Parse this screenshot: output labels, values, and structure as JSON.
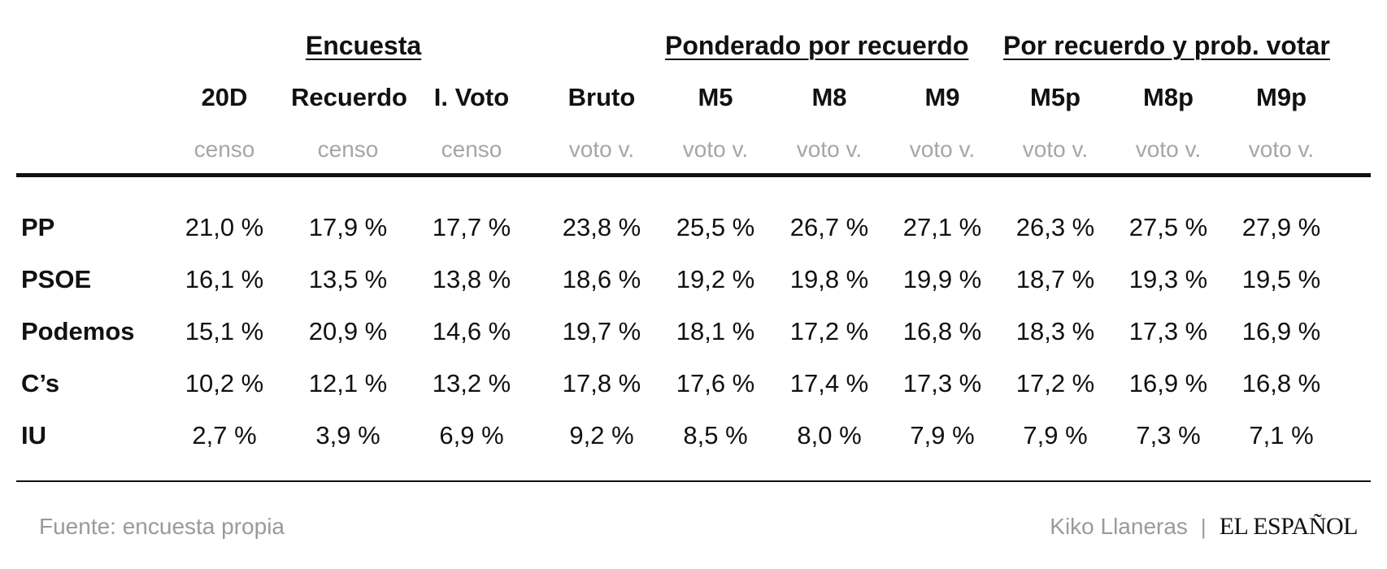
{
  "groups": {
    "encuesta": "Encuesta",
    "ponderado": "Ponderado por recuerdo",
    "prob": "Por recuerdo y prob. votar"
  },
  "columns": [
    {
      "label": "20D",
      "sub": "censo"
    },
    {
      "label": "Recuerdo",
      "sub": "censo"
    },
    {
      "label": "I. Voto",
      "sub": "censo"
    },
    {
      "label": "Bruto",
      "sub": "voto v."
    },
    {
      "label": "M5",
      "sub": "voto v."
    },
    {
      "label": "M8",
      "sub": "voto v."
    },
    {
      "label": "M9",
      "sub": "voto v."
    },
    {
      "label": "M5p",
      "sub": "voto v."
    },
    {
      "label": "M8p",
      "sub": "voto v."
    },
    {
      "label": "M9p",
      "sub": "voto v."
    }
  ],
  "rows": [
    {
      "party": "PP",
      "values": [
        "21,0 %",
        "17,9 %",
        "17,7 %",
        "23,8 %",
        "25,5 %",
        "26,7 %",
        "27,1 %",
        "26,3 %",
        "27,5 %",
        "27,9 %"
      ]
    },
    {
      "party": "PSOE",
      "values": [
        "16,1 %",
        "13,5 %",
        "13,8 %",
        "18,6 %",
        "19,2 %",
        "19,8 %",
        "19,9 %",
        "18,7 %",
        "19,3 %",
        "19,5 %"
      ]
    },
    {
      "party": "Podemos",
      "values": [
        "15,1 %",
        "20,9 %",
        "14,6 %",
        "19,7 %",
        "18,1 %",
        "17,2 %",
        "16,8 %",
        "18,3 %",
        "17,3 %",
        "16,9 %"
      ]
    },
    {
      "party": "C’s",
      "values": [
        "10,2 %",
        "12,1 %",
        "13,2 %",
        "17,8 %",
        "17,6 %",
        "17,4 %",
        "17,3 %",
        "17,2 %",
        "16,9 %",
        "16,8 %"
      ]
    },
    {
      "party": "IU",
      "values": [
        "2,7 %",
        "3,9 %",
        "6,9 %",
        "9,2 %",
        "8,5 %",
        "8,0 %",
        "7,9 %",
        "7,9 %",
        "7,3 %",
        "7,1 %"
      ]
    }
  ],
  "footer": {
    "source": "Fuente: encuesta propia",
    "author": "Kiko Llaneras",
    "separator": "|",
    "logo": "EL ESPAÑOL"
  },
  "colors": {
    "text": "#111111",
    "muted": "#a6a6a6"
  }
}
